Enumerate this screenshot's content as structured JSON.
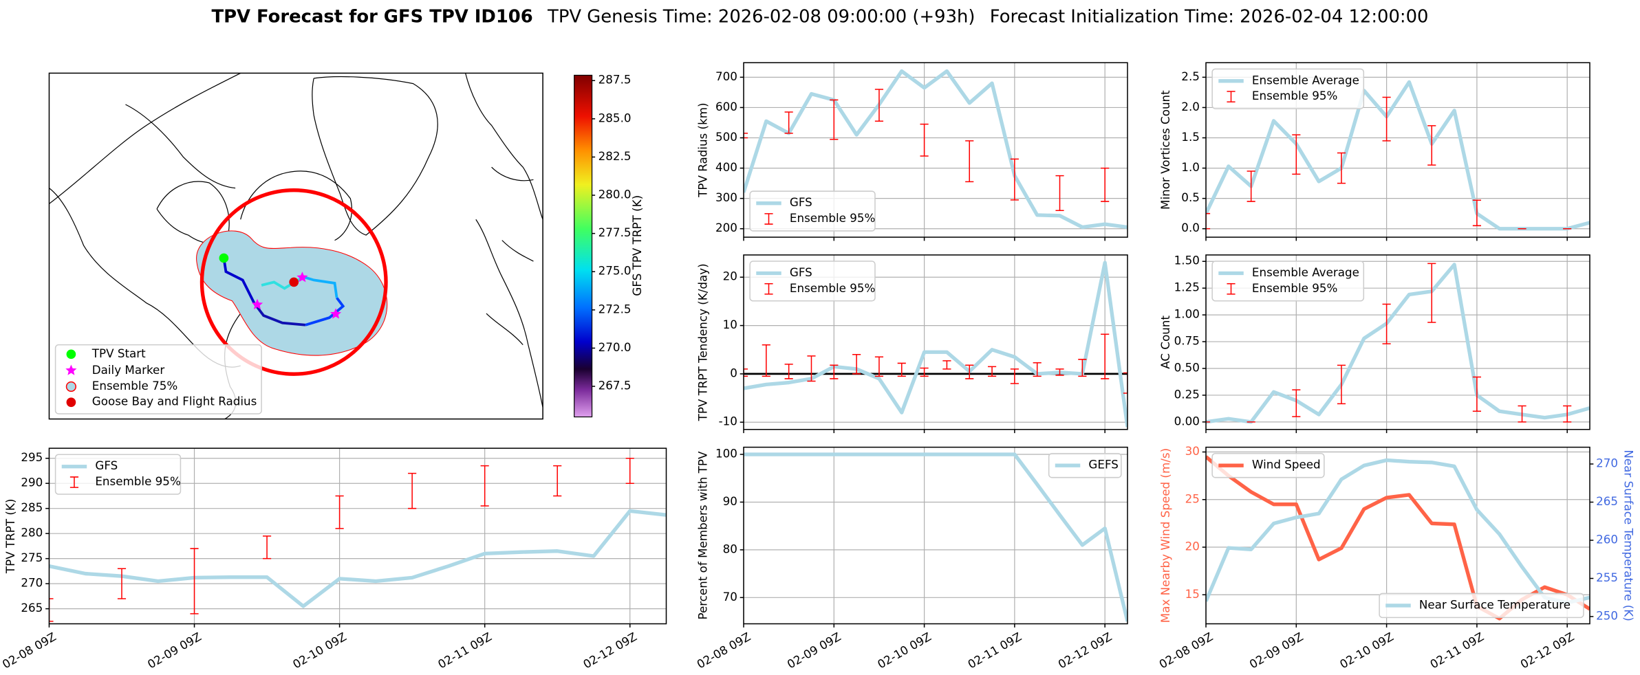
{
  "title": [
    "TPV Forecast for GFS TPV ID106",
    "TPV Genesis Time: 2026-02-08 09:00:00 (+93h)",
    "Forecast Initialization Time: 2026-02-04 12:00:00"
  ],
  "chart_data": [
    {
      "type": "map",
      "legend": [
        "TPV Start",
        "Daily Marker",
        "Ensemble 75%",
        "Goose Bay and Flight Radius"
      ],
      "colorbar_label": "GFS TPV TRPT (K)",
      "clim": [
        265.5,
        287.85
      ],
      "cticks": [
        267.5,
        {
          "value": 270,
          "label": "270.0"
        },
        272.5,
        {
          "value": 275,
          "label": "275.0"
        },
        277.5,
        {
          "value": 280,
          "label": "280.0"
        },
        282.5,
        {
          "value": 285,
          "label": "285.0"
        },
        287.5
      ]
    },
    {
      "type": "line",
      "ylabel": "TPV Radius (km)",
      "grid": true,
      "legend": "lower left",
      "xlim": [
        0,
        102
      ],
      "xticks": [
        0,
        24,
        48,
        72,
        96
      ],
      "ylim": [
        172,
        748
      ],
      "yticks": [
        200,
        300,
        400,
        500,
        600,
        700
      ],
      "series": [
        {
          "name": "GFS",
          "type": "line",
          "color": "#add8e6",
          "x": [
            0,
            6,
            12,
            18,
            24,
            30,
            36,
            42,
            48,
            54,
            60,
            66,
            72,
            78,
            84,
            90,
            96,
            102
          ],
          "values": [
            320,
            555,
            515,
            645,
            625,
            510,
            610,
            720,
            665,
            720,
            615,
            680,
            375,
            245,
            243,
            205,
            215,
            205
          ]
        },
        {
          "name": "Ensemble 95%",
          "type": "errorbar",
          "color": "#ff0000",
          "x": [
            0,
            12,
            24,
            36,
            48,
            60,
            72,
            84,
            96
          ],
          "lower": [
            500,
            515,
            495,
            555,
            440,
            355,
            295,
            260,
            290
          ],
          "upper": [
            515,
            585,
            625,
            660,
            545,
            490,
            430,
            375,
            400
          ]
        }
      ]
    },
    {
      "type": "line",
      "ylabel": "TPV TRPT Tendency (K/day)",
      "grid": true,
      "legend": "upper left",
      "hline": 0,
      "xlim": [
        0,
        102
      ],
      "xticks": [
        0,
        24,
        48,
        72,
        96
      ],
      "ylim": [
        -11.5,
        24.6
      ],
      "yticks": [
        -10,
        0,
        10,
        20
      ],
      "series": [
        {
          "name": "GFS",
          "type": "line",
          "color": "#add8e6",
          "x": [
            0,
            6,
            12,
            18,
            24,
            30,
            36,
            42,
            48,
            54,
            60,
            66,
            72,
            78,
            84,
            90,
            96,
            102
          ],
          "values": [
            -3,
            -2.2,
            -1.8,
            -1,
            1.5,
            1,
            -1,
            -8,
            4.5,
            4.5,
            0.5,
            5,
            3.5,
            0,
            0.3,
            0,
            23,
            -11
          ]
        },
        {
          "name": "Ensemble 95%",
          "type": "errorbar",
          "color": "#ff0000",
          "x": [
            0,
            6,
            12,
            18,
            24,
            30,
            36,
            42,
            48,
            54,
            60,
            66,
            72,
            78,
            84,
            90,
            96,
            102
          ],
          "lower": [
            -0.5,
            -0.5,
            -1,
            -1.5,
            -1,
            0,
            -0.5,
            -0.5,
            -0.5,
            1,
            -1,
            -0.5,
            -2,
            -0.5,
            -0.3,
            -0.5,
            -1,
            -4
          ],
          "upper": [
            1,
            6,
            2,
            3.7,
            1.8,
            4,
            3.5,
            2.2,
            1.2,
            2.7,
            1.8,
            1.5,
            1,
            2.3,
            1,
            3,
            8.2,
            0.2
          ]
        }
      ]
    },
    {
      "type": "line",
      "ylabel": "TPV TRPT (K)",
      "grid": true,
      "legend": "upper left",
      "xlim": [
        0,
        102
      ],
      "xticks": [
        {
          "value": 0,
          "label": "02-08 09Z"
        },
        {
          "value": 24,
          "label": "02-09 09Z"
        },
        {
          "value": 48,
          "label": "02-10 09Z"
        },
        {
          "value": 72,
          "label": "02-11 09Z"
        },
        {
          "value": 96,
          "label": "02-12 09Z"
        }
      ],
      "ylim": [
        262,
        297
      ],
      "yticks": [
        265,
        270,
        275,
        280,
        285,
        290,
        295
      ],
      "series": [
        {
          "name": "GFS",
          "type": "line",
          "color": "#add8e6",
          "x": [
            0,
            6,
            12,
            18,
            24,
            30,
            36,
            42,
            48,
            54,
            60,
            66,
            72,
            78,
            84,
            90,
            96,
            102
          ],
          "values": [
            273.5,
            272,
            271.5,
            270.5,
            271.2,
            271.3,
            271.3,
            265.5,
            271,
            270.5,
            271.2,
            273.5,
            276,
            276.3,
            276.5,
            275.5,
            284.5,
            283.7
          ]
        },
        {
          "name": "Ensemble 95%",
          "type": "errorbar",
          "color": "#ff0000",
          "x": [
            0,
            12,
            24,
            36,
            48,
            60,
            72,
            84,
            96
          ],
          "lower": [
            262.5,
            267,
            264,
            275,
            281,
            285,
            285.5,
            287.5,
            290
          ],
          "upper": [
            267,
            273,
            277,
            279.5,
            287.5,
            292,
            293.5,
            293.5,
            295
          ]
        }
      ]
    },
    {
      "type": "line",
      "ylabel": "Minor Vortices Count",
      "grid": true,
      "legend": "upper left",
      "xlim": [
        0,
        102
      ],
      "xticks": [
        0,
        24,
        48,
        72,
        96
      ],
      "ylim": [
        -0.14,
        2.74
      ],
      "yticks": [
        {
          "value": 0,
          "label": "0.0"
        },
        0.5,
        {
          "value": 1,
          "label": "1.0"
        },
        1.5,
        {
          "value": 2,
          "label": "2.0"
        },
        2.5
      ],
      "series": [
        {
          "name": "Ensemble Average",
          "type": "line",
          "color": "#add8e6",
          "x": [
            0,
            6,
            12,
            18,
            24,
            30,
            36,
            42,
            48,
            54,
            60,
            66,
            72,
            78,
            84,
            90,
            96,
            102
          ],
          "values": [
            0.25,
            1.03,
            0.7,
            1.78,
            1.4,
            0.78,
            1.0,
            2.28,
            1.85,
            2.42,
            1.4,
            1.95,
            0.25,
            0,
            0,
            0,
            0,
            0.1
          ]
        },
        {
          "name": "Ensemble 95%",
          "type": "errorbar",
          "color": "#ff0000",
          "x": [
            0,
            12,
            24,
            36,
            48,
            60,
            72,
            84,
            96
          ],
          "lower": [
            0,
            0.45,
            0.9,
            0.75,
            1.45,
            1.05,
            0.05,
            0,
            0
          ],
          "upper": [
            0.25,
            0.95,
            1.55,
            1.25,
            2.17,
            1.7,
            0.47,
            0,
            0
          ]
        }
      ]
    },
    {
      "type": "line",
      "ylabel": "AC Count",
      "grid": true,
      "legend": "upper left",
      "xlim": [
        0,
        102
      ],
      "xticks": [
        0,
        24,
        48,
        72,
        96
      ],
      "ylim": [
        -0.07,
        1.56
      ],
      "yticks": [
        {
          "value": 0,
          "label": "0.00"
        },
        0.25,
        {
          "value": 0.5,
          "label": "0.50"
        },
        0.75,
        {
          "value": 1,
          "label": "1.00"
        },
        1.25,
        {
          "value": 1.5,
          "label": "1.50"
        }
      ],
      "series": [
        {
          "name": "Ensemble Average",
          "type": "line",
          "color": "#add8e6",
          "x": [
            0,
            6,
            12,
            18,
            24,
            30,
            36,
            42,
            48,
            54,
            60,
            66,
            72,
            78,
            84,
            90,
            96,
            102
          ],
          "values": [
            0,
            0.03,
            0,
            0.28,
            0.2,
            0.07,
            0.35,
            0.78,
            0.92,
            1.19,
            1.22,
            1.47,
            0.25,
            0.1,
            0.07,
            0.04,
            0.07,
            0.13
          ]
        },
        {
          "name": "Ensemble 95%",
          "type": "errorbar",
          "color": "#ff0000",
          "x": [
            0,
            12,
            24,
            36,
            48,
            60,
            72,
            84,
            96
          ],
          "lower": [
            0,
            0,
            0.05,
            0.17,
            0.73,
            0.93,
            0.1,
            0,
            0
          ],
          "upper": [
            0,
            0,
            0.3,
            0.53,
            1.1,
            1.48,
            0.42,
            0.15,
            0.15
          ]
        }
      ]
    },
    {
      "type": "line",
      "ylabel": "Percent of Members with TPV",
      "grid": true,
      "legend": "upper right",
      "xlim": [
        0,
        102
      ],
      "xticks": [
        {
          "value": 0,
          "label": "02-08 09Z"
        },
        {
          "value": 24,
          "label": "02-09 09Z"
        },
        {
          "value": 48,
          "label": "02-10 09Z"
        },
        {
          "value": 72,
          "label": "02-11 09Z"
        },
        {
          "value": 96,
          "label": "02-12 09Z"
        }
      ],
      "ylim": [
        64.5,
        101.5
      ],
      "yticks": [
        70,
        80,
        90,
        100
      ],
      "series": [
        {
          "name": "GEFS",
          "type": "line",
          "color": "#add8e6",
          "x": [
            0,
            6,
            12,
            18,
            24,
            30,
            36,
            42,
            48,
            54,
            60,
            66,
            72,
            78,
            84,
            90,
            96,
            102
          ],
          "values": [
            100,
            100,
            100,
            100,
            100,
            100,
            100,
            100,
            100,
            100,
            100,
            100,
            100,
            93.7,
            87.3,
            81,
            84.5,
            65
          ]
        }
      ]
    },
    {
      "type": "line",
      "ylabel": "Max Nearby Wind Speed (m/s)",
      "y2label": "Near Surface Temperature (K)",
      "ycolor": "#ff6347",
      "y2color": "#4169e1",
      "grid": true,
      "xlim": [
        0,
        102
      ],
      "xticks": [
        {
          "value": 0,
          "label": "02-08 09Z"
        },
        {
          "value": 24,
          "label": "02-09 09Z"
        },
        {
          "value": 48,
          "label": "02-10 09Z"
        },
        {
          "value": 72,
          "label": "02-11 09Z"
        },
        {
          "value": 96,
          "label": "02-12 09Z"
        }
      ],
      "ylim": [
        11.95,
        30.5
      ],
      "yticks": [
        15,
        20,
        25,
        30
      ],
      "y2lim": [
        249.05,
        272.2
      ],
      "y2ticks": [
        250,
        255,
        260,
        265,
        270
      ],
      "series": [
        {
          "name": "Wind Speed",
          "type": "line",
          "color": "#ff6347",
          "legend": "upper left",
          "x": [
            0,
            6,
            12,
            18,
            24,
            30,
            36,
            42,
            48,
            54,
            60,
            66,
            72,
            78,
            84,
            90,
            96,
            102
          ],
          "values": [
            29.5,
            27.5,
            25.8,
            24.5,
            24.5,
            18.7,
            19.9,
            24,
            25.2,
            25.5,
            22.5,
            22.4,
            13.8,
            12.5,
            14.5,
            15.8,
            15,
            13.5
          ]
        },
        {
          "name": "Near Surface Temperature",
          "type": "line",
          "color": "#add8e6",
          "axis": "y2",
          "legend": "lower right",
          "x": [
            0,
            6,
            12,
            18,
            24,
            30,
            36,
            42,
            48,
            54,
            60,
            66,
            72,
            78,
            84,
            90,
            96,
            102
          ],
          "values": [
            252,
            259,
            258.8,
            262.2,
            263,
            263.5,
            268,
            269.8,
            270.5,
            270.3,
            270.2,
            269.7,
            264,
            260.8,
            256.5,
            252.5,
            251.8,
            252.5
          ]
        }
      ]
    }
  ]
}
